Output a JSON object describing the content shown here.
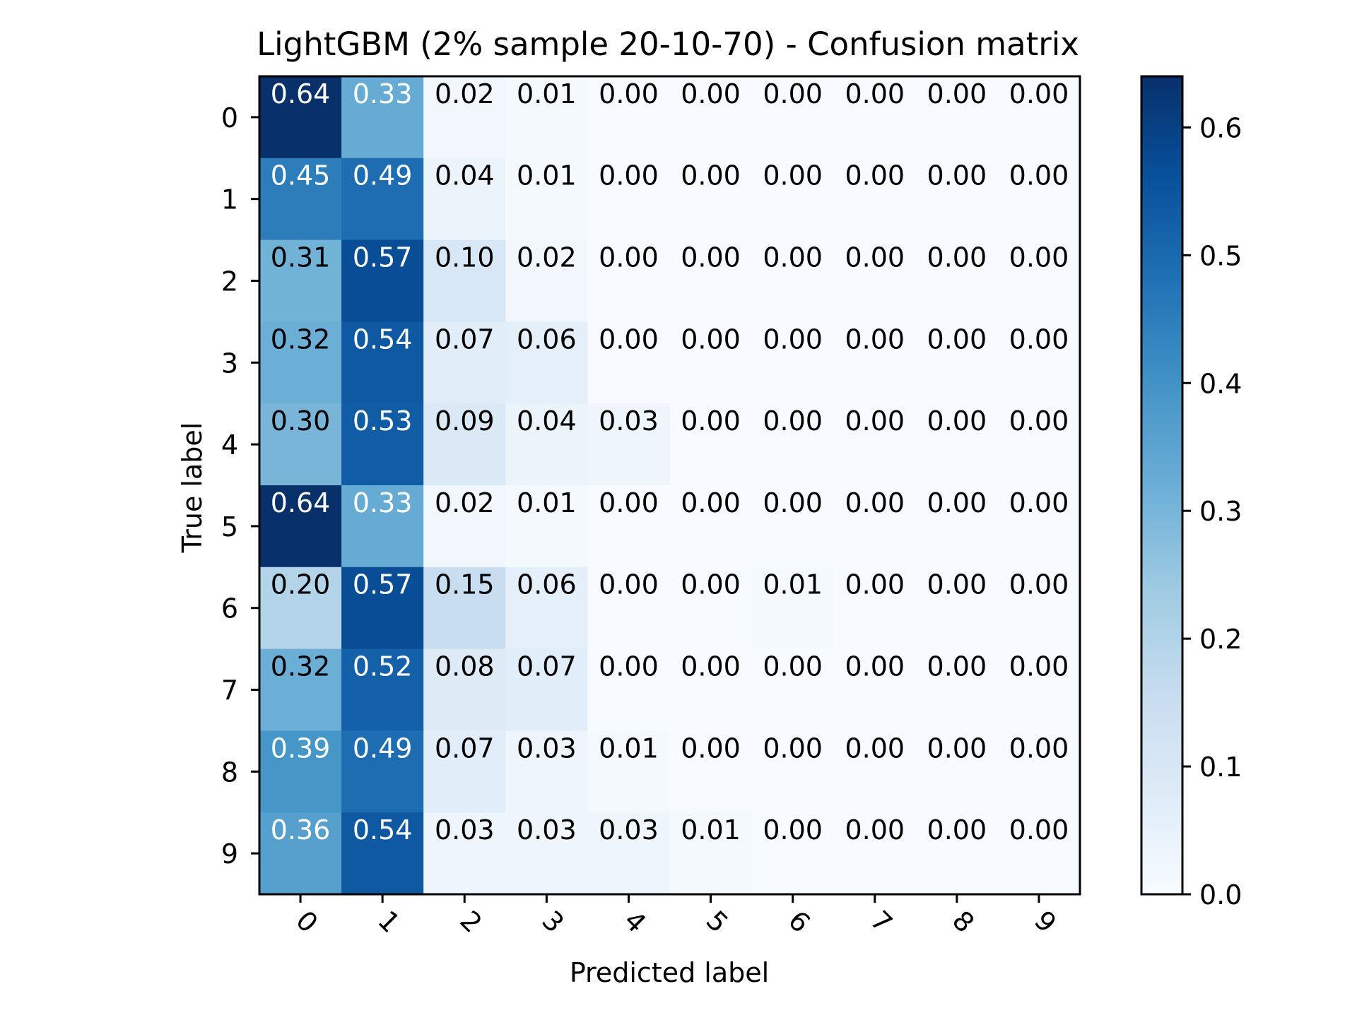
{
  "chart_data": {
    "type": "heatmap",
    "title": "LightGBM (2% sample 20-10-70) - Confusion matrix",
    "xlabel": "Predicted label",
    "ylabel": "True label",
    "x_categories": [
      "0",
      "1",
      "2",
      "3",
      "4",
      "5",
      "6",
      "7",
      "8",
      "9"
    ],
    "y_categories": [
      "0",
      "1",
      "2",
      "3",
      "4",
      "5",
      "6",
      "7",
      "8",
      "9"
    ],
    "values": [
      [
        0.64,
        0.33,
        0.02,
        0.01,
        0.0,
        0.0,
        0.0,
        0.0,
        0.0,
        0.0
      ],
      [
        0.45,
        0.49,
        0.04,
        0.01,
        0.0,
        0.0,
        0.0,
        0.0,
        0.0,
        0.0
      ],
      [
        0.31,
        0.57,
        0.1,
        0.02,
        0.0,
        0.0,
        0.0,
        0.0,
        0.0,
        0.0
      ],
      [
        0.32,
        0.54,
        0.07,
        0.06,
        0.0,
        0.0,
        0.0,
        0.0,
        0.0,
        0.0
      ],
      [
        0.3,
        0.53,
        0.09,
        0.04,
        0.03,
        0.0,
        0.0,
        0.0,
        0.0,
        0.0
      ],
      [
        0.64,
        0.33,
        0.02,
        0.01,
        0.0,
        0.0,
        0.0,
        0.0,
        0.0,
        0.0
      ],
      [
        0.2,
        0.57,
        0.15,
        0.06,
        0.0,
        0.0,
        0.01,
        0.0,
        0.0,
        0.0
      ],
      [
        0.32,
        0.52,
        0.08,
        0.07,
        0.0,
        0.0,
        0.0,
        0.0,
        0.0,
        0.0
      ],
      [
        0.39,
        0.49,
        0.07,
        0.03,
        0.01,
        0.0,
        0.0,
        0.0,
        0.0,
        0.0
      ],
      [
        0.36,
        0.54,
        0.03,
        0.03,
        0.03,
        0.01,
        0.0,
        0.0,
        0.0,
        0.0
      ]
    ],
    "colorbar": {
      "range": [
        0.0,
        0.64
      ],
      "ticks": [
        0.0,
        0.1,
        0.2,
        0.3,
        0.4,
        0.5,
        0.6
      ],
      "tick_labels": [
        "0.0",
        "0.1",
        "0.2",
        "0.3",
        "0.4",
        "0.5",
        "0.6"
      ]
    },
    "colormap": "Blues",
    "colormap_stops": [
      "#f7fbff",
      "#deebf7",
      "#c6dbef",
      "#9ecae1",
      "#6baed6",
      "#4292c6",
      "#2171b5",
      "#08519c",
      "#08306b"
    ],
    "text_colors": {
      "dark_cell": "#ffffff",
      "light_cell": "#000000"
    },
    "x_tick_rotation": "45 degrees",
    "grid": false,
    "legend": "colorbar on the right"
  }
}
